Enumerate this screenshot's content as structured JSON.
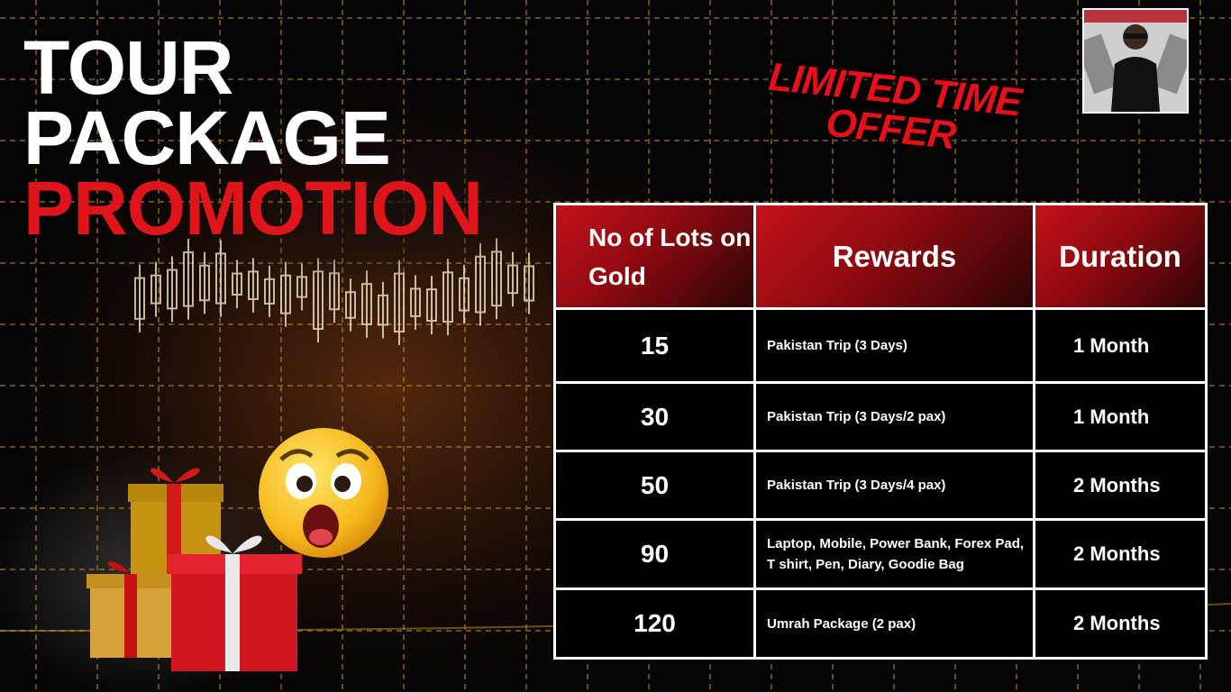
{
  "headline": {
    "line1": "TOUR",
    "line2": "PACKAGE",
    "line3": "PROMOTION"
  },
  "offer": {
    "line1": "LIMITED TIME",
    "line2": "OFFER"
  },
  "colors": {
    "accent_red": "#e0141b",
    "header_red": "#c4121b",
    "table_border": "#ffffff",
    "cell_bg": "#000000"
  },
  "icons": [
    "shocked-emoji-icon",
    "gift-boxes-icon",
    "avatar-photo"
  ],
  "table": {
    "headers": [
      "No of Lots on Gold",
      "Rewards",
      "Duration"
    ],
    "rows": [
      {
        "lots": "15",
        "reward": "Pakistan Trip (3 Days)",
        "duration": "1 Month"
      },
      {
        "lots": "30",
        "reward": "Pakistan Trip (3 Days/2 pax)",
        "duration": "1 Month"
      },
      {
        "lots": "50",
        "reward": "Pakistan Trip (3 Days/4 pax)",
        "duration": "2 Months"
      },
      {
        "lots": "90",
        "reward": "Laptop, Mobile, Power Bank, Forex Pad, T shirt, Pen, Diary, Goodie Bag",
        "duration": "2 Months"
      },
      {
        "lots": "120",
        "reward": "Umrah Package (2 pax)",
        "duration": "2 Months"
      }
    ]
  }
}
